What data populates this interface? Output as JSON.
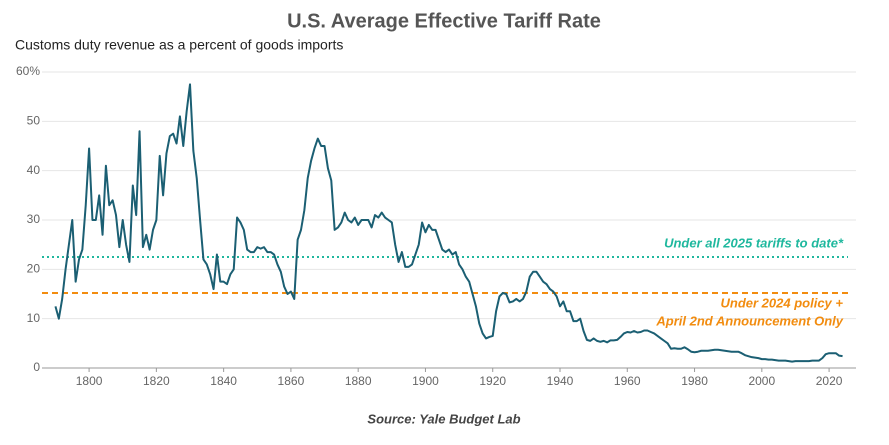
{
  "chart_data": {
    "type": "line",
    "title": "U.S. Average Effective Tariff Rate",
    "subtitle": "Customs duty revenue as a percent of goods imports",
    "source": "Source: Yale Budget Lab",
    "x": [
      1790,
      1791,
      1792,
      1793,
      1794,
      1795,
      1796,
      1797,
      1798,
      1799,
      1800,
      1801,
      1802,
      1803,
      1804,
      1805,
      1806,
      1807,
      1808,
      1809,
      1810,
      1811,
      1812,
      1813,
      1814,
      1815,
      1816,
      1817,
      1818,
      1819,
      1820,
      1821,
      1822,
      1823,
      1824,
      1825,
      1826,
      1827,
      1828,
      1829,
      1830,
      1831,
      1832,
      1833,
      1834,
      1835,
      1836,
      1837,
      1838,
      1839,
      1840,
      1841,
      1842,
      1843,
      1844,
      1845,
      1846,
      1847,
      1848,
      1849,
      1850,
      1851,
      1852,
      1853,
      1854,
      1855,
      1856,
      1857,
      1858,
      1859,
      1860,
      1861,
      1862,
      1863,
      1864,
      1865,
      1866,
      1867,
      1868,
      1869,
      1870,
      1871,
      1872,
      1873,
      1874,
      1875,
      1876,
      1877,
      1878,
      1879,
      1880,
      1881,
      1882,
      1883,
      1884,
      1885,
      1886,
      1887,
      1888,
      1889,
      1890,
      1891,
      1892,
      1893,
      1894,
      1895,
      1896,
      1897,
      1898,
      1899,
      1900,
      1901,
      1902,
      1903,
      1904,
      1905,
      1906,
      1907,
      1908,
      1909,
      1910,
      1911,
      1912,
      1913,
      1914,
      1915,
      1916,
      1917,
      1918,
      1919,
      1920,
      1921,
      1922,
      1923,
      1924,
      1925,
      1926,
      1927,
      1928,
      1929,
      1930,
      1931,
      1932,
      1933,
      1934,
      1935,
      1936,
      1937,
      1938,
      1939,
      1940,
      1941,
      1942,
      1943,
      1944,
      1945,
      1946,
      1947,
      1948,
      1949,
      1950,
      1951,
      1952,
      1953,
      1954,
      1955,
      1956,
      1957,
      1958,
      1959,
      1960,
      1961,
      1962,
      1963,
      1964,
      1965,
      1966,
      1967,
      1968,
      1969,
      1970,
      1971,
      1972,
      1973,
      1974,
      1975,
      1976,
      1977,
      1978,
      1979,
      1980,
      1981,
      1982,
      1983,
      1984,
      1985,
      1986,
      1987,
      1988,
      1989,
      1990,
      1991,
      1992,
      1993,
      1994,
      1995,
      1996,
      1997,
      1998,
      1999,
      2000,
      2001,
      2002,
      2003,
      2004,
      2005,
      2006,
      2007,
      2008,
      2009,
      2010,
      2011,
      2012,
      2013,
      2014,
      2015,
      2016,
      2017,
      2018,
      2019,
      2020,
      2021,
      2022,
      2023,
      2024
    ],
    "series": [
      {
        "color": "#1b5f73",
        "values": [
          12.5,
          10,
          14,
          20,
          25,
          30,
          17.5,
          22,
          24,
          33,
          44.5,
          30,
          30,
          35,
          27,
          41,
          33,
          34,
          31,
          24.5,
          30,
          25,
          21.5,
          37,
          31,
          48,
          24.5,
          27,
          24,
          28,
          30,
          43,
          35,
          43.5,
          47,
          47.5,
          45.5,
          51,
          45,
          52,
          57.5,
          44,
          38.5,
          30,
          22,
          21,
          19,
          16,
          23,
          17.5,
          17.5,
          17,
          19,
          20,
          30.5,
          29.5,
          28,
          24,
          23.5,
          23.5,
          24.5,
          24.2,
          24.5,
          23.5,
          23.5,
          23,
          21,
          19.5,
          16.5,
          15,
          15.5,
          14,
          26,
          28,
          32,
          38.5,
          42,
          44.5,
          46.5,
          45,
          45,
          40.5,
          38,
          28,
          28.5,
          29.5,
          31.5,
          30,
          29.5,
          30.5,
          29,
          30,
          30,
          30,
          28.5,
          31,
          30.5,
          31.5,
          30.5,
          30,
          29.5,
          25,
          21.5,
          23.5,
          20.5,
          20.5,
          21,
          23,
          25,
          29.5,
          27.5,
          29,
          28,
          28,
          26,
          24,
          23.5,
          24,
          23,
          23.5,
          21,
          20,
          18.5,
          17.5,
          15,
          12.5,
          9,
          7,
          6,
          6.3,
          6.5,
          11.5,
          14.5,
          15.2,
          15,
          13.3,
          13.5,
          14,
          13.5,
          14,
          15.5,
          18.5,
          19.5,
          19.5,
          18.5,
          17.5,
          17,
          16,
          15.5,
          14.5,
          12.5,
          13.5,
          11.5,
          11.5,
          9.5,
          9.5,
          10,
          7.5,
          5.7,
          5.5,
          6,
          5.5,
          5.3,
          5.5,
          5.2,
          5.6,
          5.6,
          5.7,
          6.3,
          7,
          7.3,
          7.2,
          7.5,
          7.2,
          7.3,
          7.6,
          7.6,
          7.3,
          7,
          6.5,
          6,
          5.5,
          5,
          3.9,
          4,
          3.9,
          3.9,
          4.2,
          3.8,
          3.3,
          3.2,
          3.3,
          3.5,
          3.5,
          3.5,
          3.6,
          3.7,
          3.7,
          3.6,
          3.5,
          3.4,
          3.3,
          3.3,
          3.3,
          3,
          2.6,
          2.4,
          2.2,
          2.1,
          2,
          1.8,
          1.8,
          1.7,
          1.7,
          1.6,
          1.5,
          1.5,
          1.5,
          1.4,
          1.3,
          1.4,
          1.4,
          1.4,
          1.4,
          1.4,
          1.5,
          1.5,
          1.5,
          2,
          2.8,
          3,
          3,
          3,
          2.5,
          2.4
        ]
      }
    ],
    "xlim": [
      1786,
      2028
    ],
    "xticks": [
      1800,
      1820,
      1840,
      1860,
      1880,
      1900,
      1920,
      1940,
      1960,
      1980,
      2000,
      2020
    ],
    "ylim": [
      0,
      60
    ],
    "yticks": [
      0,
      10,
      20,
      30,
      40,
      50,
      {
        "value": 60,
        "label": "60%"
      }
    ],
    "grid": true,
    "reference_lines": [
      {
        "value": 22.5,
        "color": "#1fb89e",
        "style": "dotted",
        "label": [
          "Under all 2025 tariffs to date*"
        ]
      },
      {
        "value": 15.2,
        "color": "#f28c0f",
        "style": "dashed",
        "label": [
          "Under 2024 policy +",
          "April 2nd Announcement Only"
        ]
      }
    ]
  }
}
